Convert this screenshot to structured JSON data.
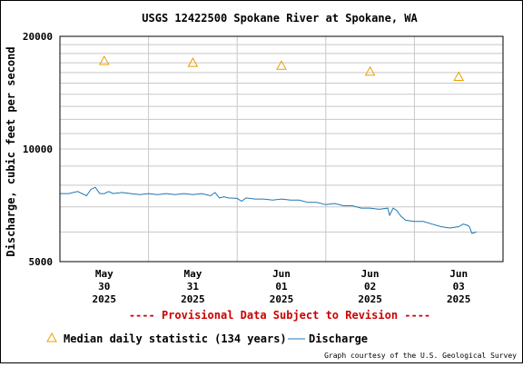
{
  "chart_data": {
    "type": "line",
    "title": "USGS 12422500 Spokane River at Spokane, WA",
    "ylabel": "Discharge, cubic feet per second",
    "xlabel": "",
    "scale": "log",
    "ylim": [
      5000,
      20000
    ],
    "yticks": [
      {
        "value": 5000,
        "label": "5000"
      },
      {
        "value": 10000,
        "label": "10000"
      },
      {
        "value": 20000,
        "label": "20000"
      }
    ],
    "x_range_days": [
      0,
      5
    ],
    "x_tick_days": [
      0.5,
      1.5,
      2.5,
      3.5,
      4.5
    ],
    "xticks": [
      [
        "May",
        "30",
        "2025"
      ],
      [
        "May",
        "31",
        "2025"
      ],
      [
        "Jun",
        "01",
        "2025"
      ],
      [
        "Jun",
        "02",
        "2025"
      ],
      [
        "Jun",
        "03",
        "2025"
      ]
    ],
    "grid": true,
    "colors": {
      "discharge": "#1f77b4",
      "median": "#e8a000",
      "provisional": "#cc0000"
    },
    "series": [
      {
        "name": "Median daily statistic (134 years)",
        "marker": "triangle",
        "x": [
          0.5,
          1.5,
          2.5,
          3.5,
          4.5
        ],
        "values": [
          17200,
          17000,
          16700,
          16100,
          15600
        ]
      },
      {
        "name": "Discharge",
        "marker": "line",
        "x": [
          0,
          0.1,
          0.2,
          0.3,
          0.35,
          0.4,
          0.45,
          0.5,
          0.55,
          0.6,
          0.7,
          0.8,
          0.9,
          1.0,
          1.1,
          1.2,
          1.3,
          1.4,
          1.5,
          1.6,
          1.7,
          1.75,
          1.8,
          1.85,
          1.9,
          2.0,
          2.05,
          2.1,
          2.2,
          2.3,
          2.4,
          2.5,
          2.6,
          2.7,
          2.8,
          2.9,
          3.0,
          3.1,
          3.2,
          3.3,
          3.4,
          3.5,
          3.6,
          3.7,
          3.72,
          3.76,
          3.8,
          3.85,
          3.9,
          4.0,
          4.1,
          4.2,
          4.3,
          4.4,
          4.5,
          4.55,
          4.6,
          4.62,
          4.65,
          4.7
        ],
        "values": [
          7600,
          7600,
          7700,
          7500,
          7800,
          7900,
          7600,
          7600,
          7700,
          7600,
          7650,
          7600,
          7550,
          7600,
          7550,
          7600,
          7550,
          7600,
          7550,
          7600,
          7500,
          7650,
          7400,
          7450,
          7400,
          7380,
          7250,
          7400,
          7350,
          7350,
          7300,
          7350,
          7300,
          7300,
          7200,
          7200,
          7100,
          7150,
          7050,
          7050,
          6950,
          6950,
          6900,
          6950,
          6650,
          6950,
          6850,
          6600,
          6450,
          6400,
          6400,
          6300,
          6200,
          6150,
          6200,
          6300,
          6250,
          6200,
          5950,
          6000
        ]
      }
    ]
  },
  "provisional": "---- Provisional Data Subject to Revision ----",
  "legend": {
    "median": "Median daily statistic (134 years)",
    "discharge": "Discharge"
  },
  "credit": "Graph courtesy of the U.S. Geological Survey"
}
